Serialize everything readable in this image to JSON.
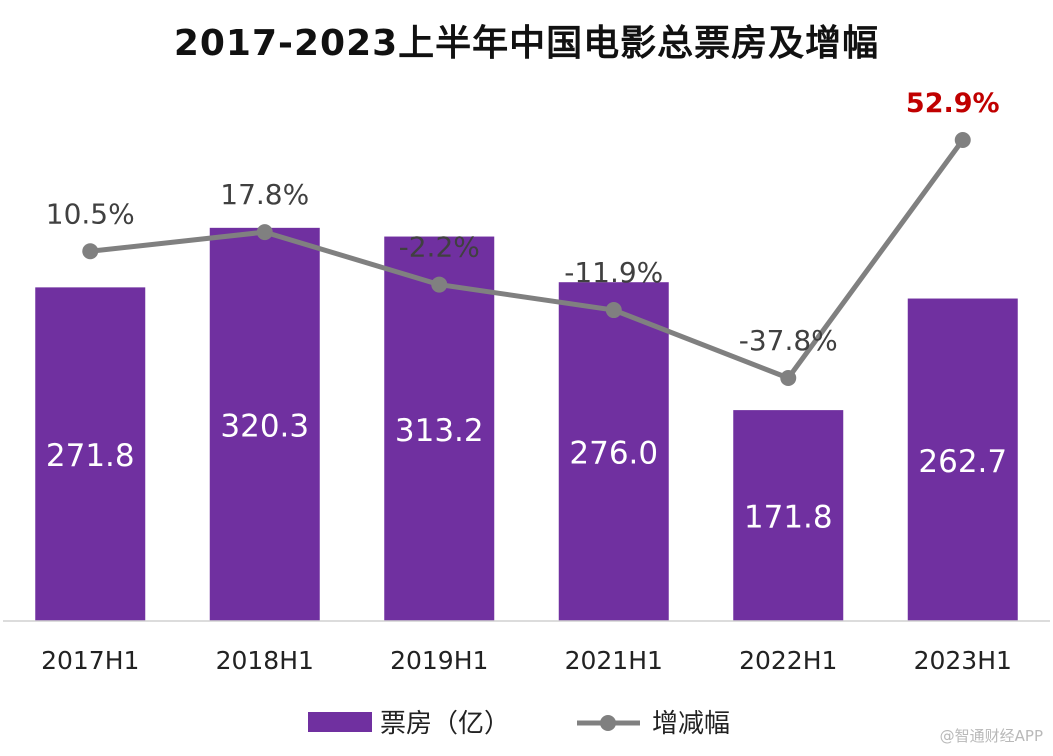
{
  "chart_data": {
    "type": "bar+line",
    "title": "2017-2023上半年中国电影总票房及增幅",
    "categories": [
      "2017H1",
      "2018H1",
      "2019H1",
      "2021H1",
      "2022H1",
      "2023H1"
    ],
    "series": [
      {
        "name": "票房（亿）",
        "type": "bar",
        "values": [
          271.8,
          320.3,
          313.2,
          276.0,
          171.8,
          262.7
        ],
        "labels": [
          "271.8",
          "320.3",
          "313.2",
          "276.0",
          "171.8",
          "262.7"
        ],
        "color": "#7030a0"
      },
      {
        "name": "增减幅",
        "type": "line",
        "values": [
          10.5,
          17.8,
          -2.2,
          -11.9,
          -37.8,
          52.9
        ],
        "labels": [
          "10.5%",
          "17.8%",
          "-2.2%",
          "-11.9%",
          "-37.8%",
          "52.9%"
        ],
        "color": "#808080",
        "highlight_color": "#c00000"
      }
    ],
    "bar_ylim": [
      0,
      400
    ],
    "line_ylim": [
      -70,
      75
    ],
    "grid": false,
    "legend_position": "bottom"
  },
  "watermark": "@智通财经APP"
}
